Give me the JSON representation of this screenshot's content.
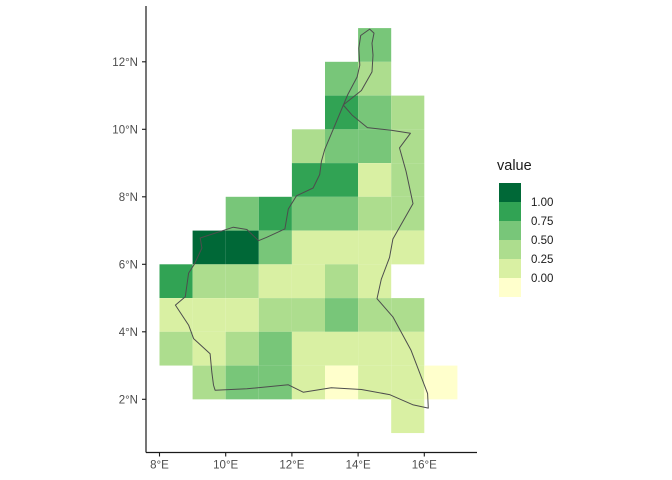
{
  "chart_data": {
    "type": "heatmap",
    "description": "Gridded 1x1 degree tile map (choropleth raster) over a country outline resembling Cameroon",
    "xlabel": "",
    "ylabel": "",
    "x_ticks": [
      {
        "label": "8°E",
        "lon": 8
      },
      {
        "label": "10°E",
        "lon": 10
      },
      {
        "label": "12°E",
        "lon": 12
      },
      {
        "label": "14°E",
        "lon": 14
      },
      {
        "label": "16°E",
        "lon": 16
      }
    ],
    "y_ticks": [
      {
        "label": "2°N",
        "lat": 2
      },
      {
        "label": "4°N",
        "lat": 4
      },
      {
        "label": "6°N",
        "lat": 6
      },
      {
        "label": "8°N",
        "lat": 8
      },
      {
        "label": "10°N",
        "lat": 10
      },
      {
        "label": "12°N",
        "lat": 12
      }
    ],
    "xlim": [
      7.6,
      17.6
    ],
    "ylim": [
      0.4,
      13.6
    ],
    "grid": false,
    "palette_low_to_high": [
      "#ffffcc",
      "#d9f0a3",
      "#addd8e",
      "#78c679",
      "#31a354",
      "#006837"
    ],
    "legend": {
      "title": "value",
      "position": "right",
      "band_colors_top_to_bottom": [
        "#006837",
        "#31a354",
        "#78c679",
        "#addd8e",
        "#d9f0a3",
        "#ffffcc"
      ],
      "labels_top_to_bottom": [
        "1.00",
        "0.75",
        "0.50",
        "0.25",
        "0.00"
      ]
    },
    "tiles_lon_lat_bin": [
      [
        14,
        12,
        3
      ],
      [
        13,
        11,
        3
      ],
      [
        14,
        11,
        2
      ],
      [
        13,
        10,
        4
      ],
      [
        14,
        10,
        3
      ],
      [
        15,
        10,
        2
      ],
      [
        12,
        9,
        2
      ],
      [
        13,
        9,
        3
      ],
      [
        14,
        9,
        3
      ],
      [
        15,
        9,
        2
      ],
      [
        12,
        8,
        4
      ],
      [
        13,
        8,
        4
      ],
      [
        14,
        8,
        1
      ],
      [
        15,
        8,
        2
      ],
      [
        10,
        7,
        3
      ],
      [
        11,
        7,
        4
      ],
      [
        12,
        7,
        3
      ],
      [
        13,
        7,
        3
      ],
      [
        14,
        7,
        2
      ],
      [
        15,
        7,
        2
      ],
      [
        9,
        6,
        5
      ],
      [
        10,
        6,
        5
      ],
      [
        11,
        6,
        3
      ],
      [
        12,
        6,
        1
      ],
      [
        13,
        6,
        1
      ],
      [
        14,
        6,
        1
      ],
      [
        15,
        6,
        1
      ],
      [
        8,
        5,
        4
      ],
      [
        9,
        5,
        2
      ],
      [
        10,
        5,
        2
      ],
      [
        11,
        5,
        1
      ],
      [
        12,
        5,
        1
      ],
      [
        13,
        5,
        2
      ],
      [
        14,
        5,
        1
      ],
      [
        8,
        4,
        1
      ],
      [
        9,
        4,
        1
      ],
      [
        10,
        4,
        1
      ],
      [
        11,
        4,
        2
      ],
      [
        12,
        4,
        2
      ],
      [
        13,
        4,
        3
      ],
      [
        14,
        4,
        2
      ],
      [
        15,
        4,
        2
      ],
      [
        8,
        3,
        2
      ],
      [
        9,
        3,
        1
      ],
      [
        10,
        3,
        2
      ],
      [
        11,
        3,
        3
      ],
      [
        12,
        3,
        1
      ],
      [
        13,
        3,
        1
      ],
      [
        14,
        3,
        1
      ],
      [
        15,
        3,
        1
      ],
      [
        9,
        2,
        2
      ],
      [
        10,
        2,
        3
      ],
      [
        11,
        2,
        3
      ],
      [
        12,
        2,
        1
      ],
      [
        13,
        2,
        0
      ],
      [
        14,
        2,
        1
      ],
      [
        15,
        2,
        1
      ],
      [
        16,
        2,
        0
      ],
      [
        15,
        1,
        1
      ]
    ],
    "border_outline_lon_lat": [
      [
        14.35,
        12.97
      ],
      [
        14.48,
        12.85
      ],
      [
        14.42,
        12.55
      ],
      [
        14.45,
        12.2
      ],
      [
        14.42,
        11.7
      ],
      [
        14.1,
        11.15
      ],
      [
        13.55,
        10.72
      ],
      [
        13.82,
        10.42
      ],
      [
        14.28,
        10.05
      ],
      [
        15.0,
        9.97
      ],
      [
        15.58,
        9.88
      ],
      [
        15.25,
        9.45
      ],
      [
        15.45,
        8.75
      ],
      [
        15.66,
        7.8
      ],
      [
        15.05,
        6.75
      ],
      [
        14.95,
        6.2
      ],
      [
        14.7,
        5.56
      ],
      [
        14.57,
        4.98
      ],
      [
        15.05,
        4.44
      ],
      [
        15.6,
        3.45
      ],
      [
        16.1,
        2.17
      ],
      [
        16.12,
        1.74
      ],
      [
        15.65,
        1.84
      ],
      [
        14.95,
        2.14
      ],
      [
        14.1,
        2.29
      ],
      [
        13.19,
        2.34
      ],
      [
        12.34,
        2.21
      ],
      [
        11.89,
        2.43
      ],
      [
        10.64,
        2.31
      ],
      [
        9.68,
        2.27
      ],
      [
        9.63,
        2.42
      ],
      [
        9.58,
        2.81
      ],
      [
        9.53,
        3.35
      ],
      [
        9.03,
        3.8
      ],
      [
        8.88,
        4.2
      ],
      [
        8.48,
        4.79
      ],
      [
        8.78,
        5.04
      ],
      [
        8.88,
        5.74
      ],
      [
        9.05,
        6.0
      ],
      [
        9.28,
        6.48
      ],
      [
        9.23,
        6.78
      ],
      [
        10.23,
        7.1
      ],
      [
        10.64,
        7.03
      ],
      [
        10.99,
        6.7
      ],
      [
        11.24,
        6.8
      ],
      [
        11.79,
        7.05
      ],
      [
        11.89,
        7.64
      ],
      [
        12.14,
        8.03
      ],
      [
        12.64,
        8.26
      ],
      [
        12.84,
        8.66
      ],
      [
        12.89,
        9.05
      ],
      [
        12.99,
        9.4
      ],
      [
        13.69,
        11.03
      ],
      [
        13.97,
        11.55
      ],
      [
        14.05,
        11.9
      ],
      [
        14.02,
        12.4
      ],
      [
        14.08,
        12.78
      ],
      [
        14.35,
        12.97
      ]
    ],
    "colors": {
      "axis_line": "#1a1a1a",
      "tick_label": "#4d4d4d",
      "legend_text": "#1a1a1a",
      "country_border": "#4d4d4d",
      "background": "#ffffff"
    }
  }
}
